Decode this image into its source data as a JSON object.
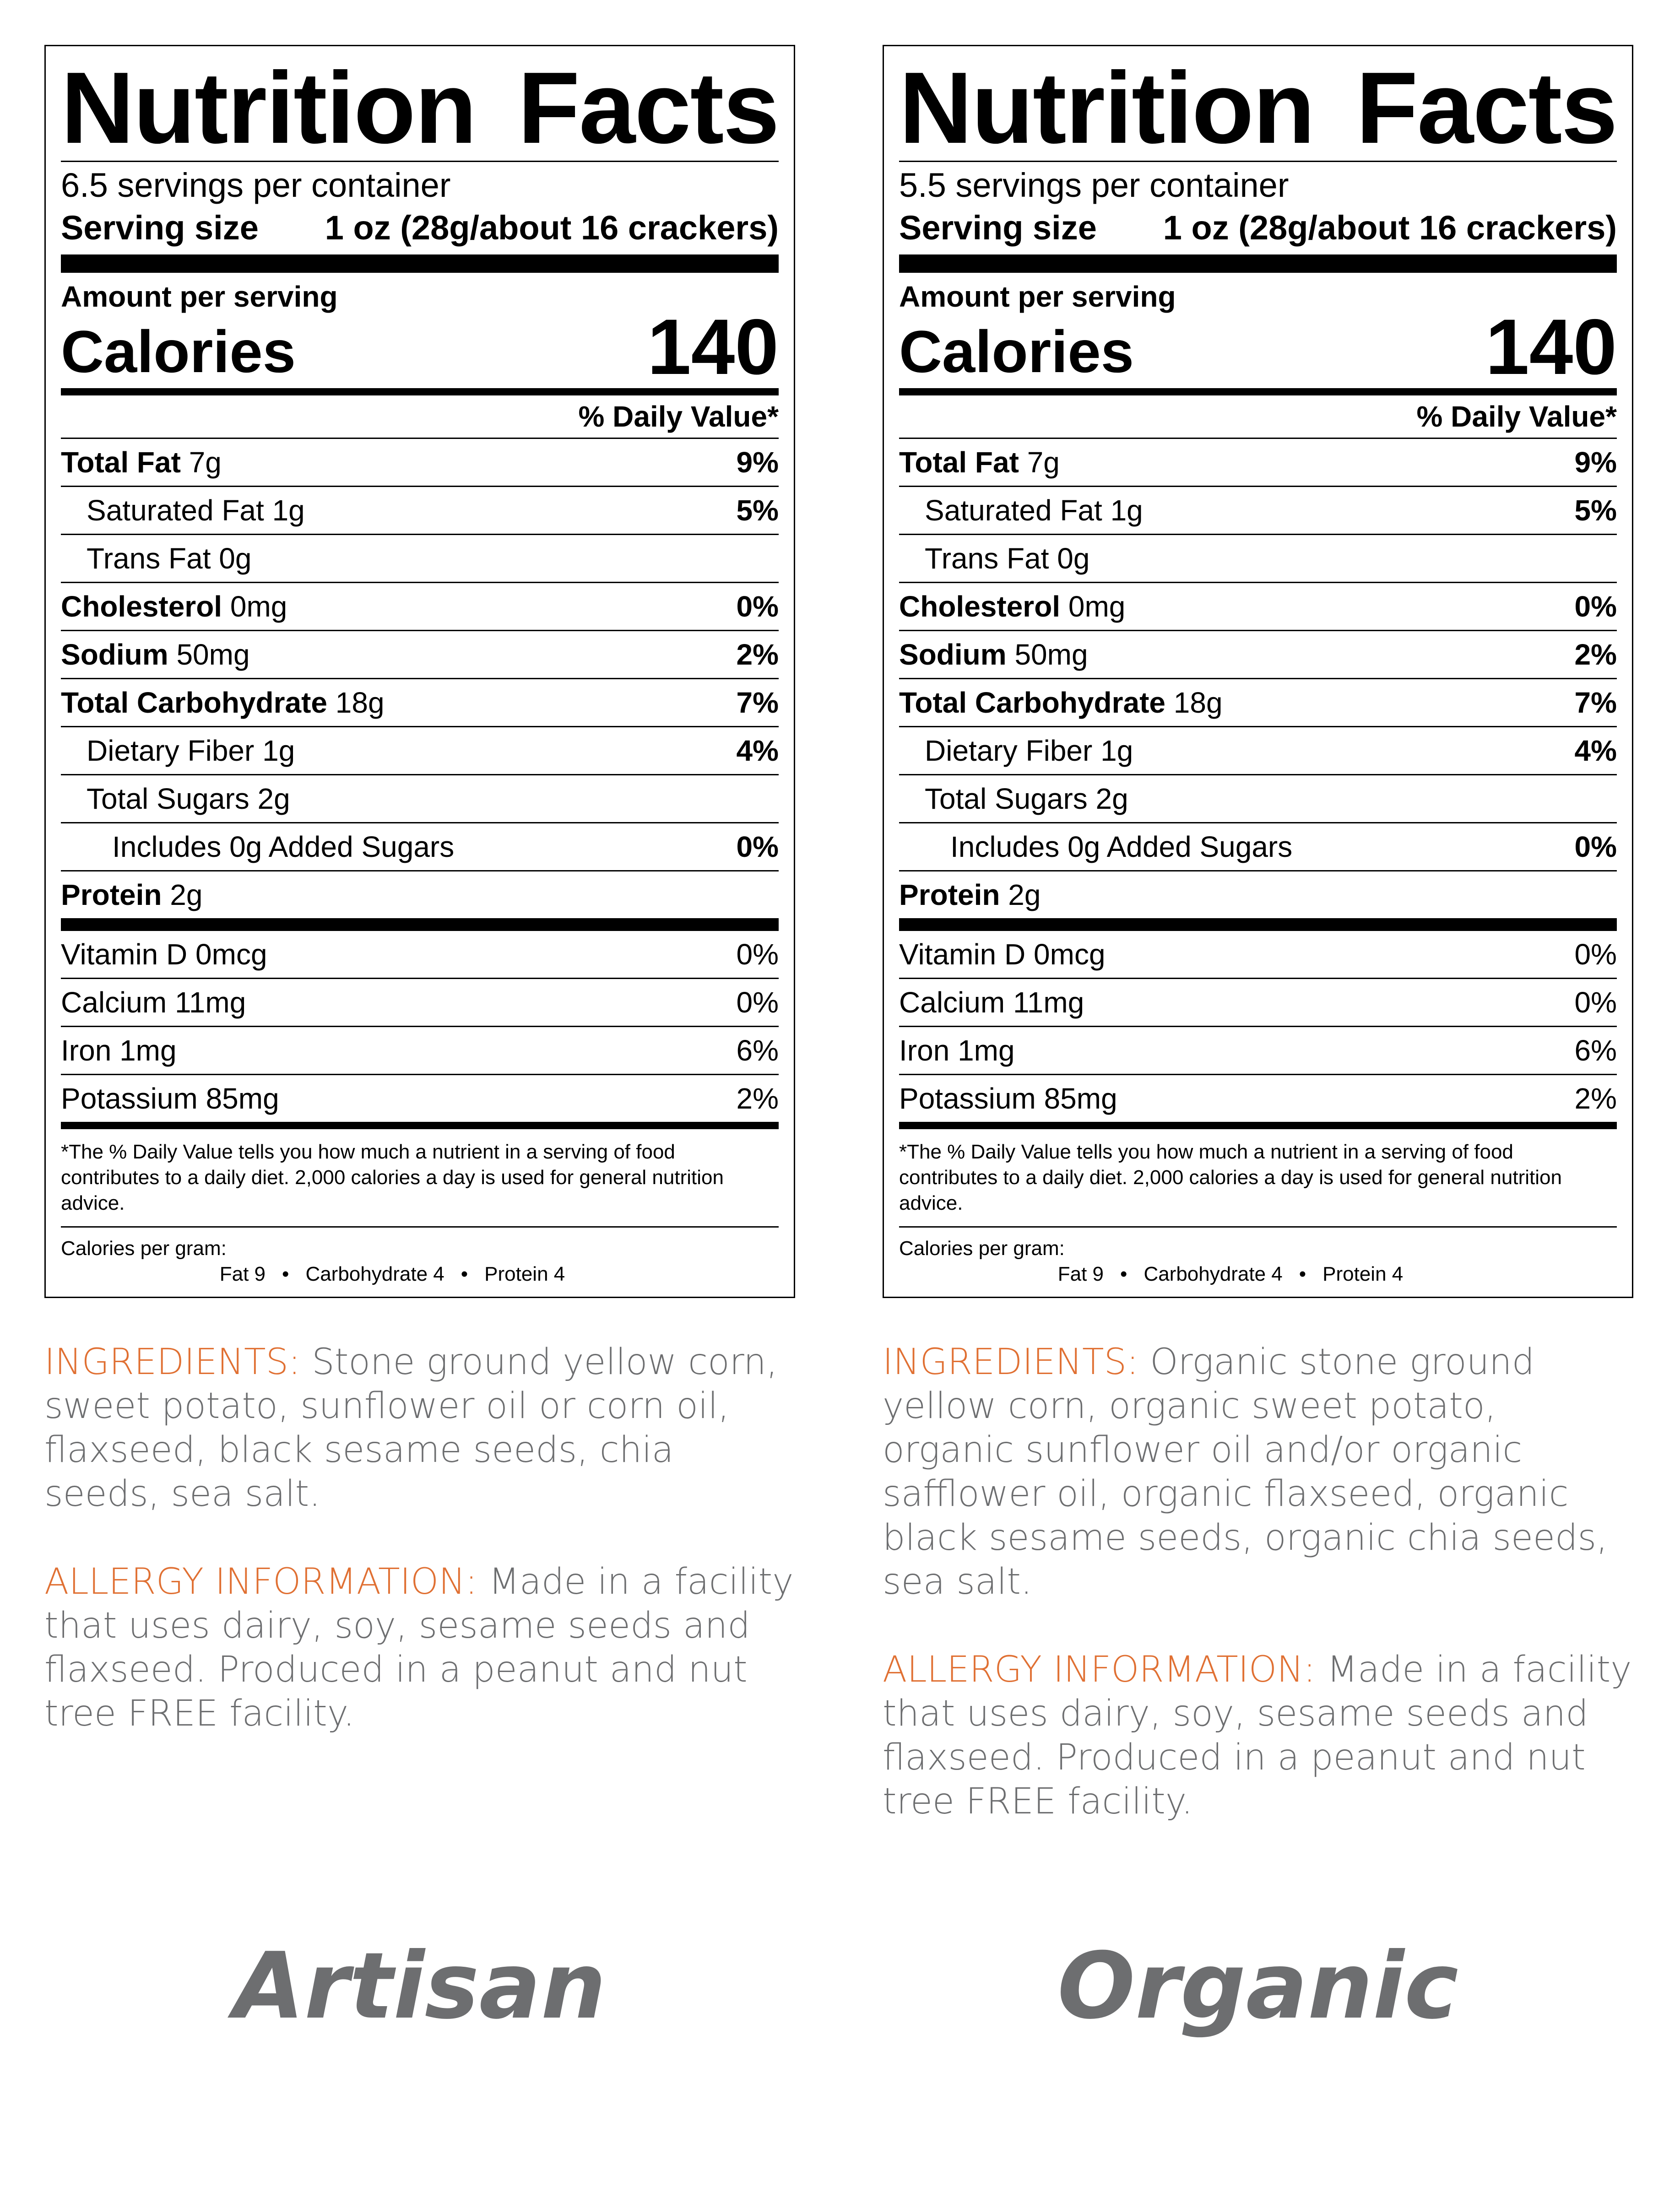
{
  "labels": [
    {
      "title": "Nutrition Facts",
      "servings_per_container": "6.5 servings per container",
      "serving_size_label": "Serving size",
      "serving_size_value": "1 oz (28g/about 16 crackers)",
      "amount_per_serving": "Amount per serving",
      "calories_label": "Calories",
      "calories_value": "140",
      "daily_value_header": "% Daily Value*",
      "nutrients": [
        {
          "name": "Total Fat",
          "amount": "7g",
          "dv": "9%"
        },
        {
          "name": "Saturated Fat",
          "amount": "1g",
          "dv": "5%"
        },
        {
          "name": "Trans Fat",
          "amount": "0g",
          "dv": ""
        },
        {
          "name": "Cholesterol",
          "amount": "0mg",
          "dv": "0%"
        },
        {
          "name": "Sodium",
          "amount": "50mg",
          "dv": "2%"
        },
        {
          "name": "Total Carbohydrate",
          "amount": "18g",
          "dv": "7%"
        },
        {
          "name": "Dietary Fiber",
          "amount": "1g",
          "dv": "4%"
        },
        {
          "name": "Total Sugars",
          "amount": "2g",
          "dv": ""
        },
        {
          "name": "Includes 0g Added Sugars",
          "amount": "",
          "dv": "0%"
        },
        {
          "name": "Protein",
          "amount": "2g",
          "dv": ""
        }
      ],
      "vitamins": [
        {
          "name": "Vitamin D 0mcg",
          "dv": "0%"
        },
        {
          "name": "Calcium 11mg",
          "dv": "0%"
        },
        {
          "name": "Iron 1mg",
          "dv": "6%"
        },
        {
          "name": "Potassium 85mg",
          "dv": "2%"
        }
      ],
      "footnote": "*The % Daily Value tells you how much a nutrient in a serving of food contributes to a daily diet. 2,000 calories a day is used for general nutrition advice.",
      "calories_per_gram_label": "Calories per gram:",
      "cpg_fat": "Fat 9",
      "cpg_carb": "Carbohydrate 4",
      "cpg_protein": "Protein 4"
    },
    {
      "title": "Nutrition Facts",
      "servings_per_container": "5.5 servings per container",
      "serving_size_label": "Serving size",
      "serving_size_value": "1 oz (28g/about 16 crackers)",
      "amount_per_serving": "Amount per serving",
      "calories_label": "Calories",
      "calories_value": "140",
      "daily_value_header": "% Daily Value*",
      "nutrients": [
        {
          "name": "Total Fat",
          "amount": "7g",
          "dv": "9%"
        },
        {
          "name": "Saturated Fat",
          "amount": "1g",
          "dv": "5%"
        },
        {
          "name": "Trans Fat",
          "amount": "0g",
          "dv": ""
        },
        {
          "name": "Cholesterol",
          "amount": "0mg",
          "dv": "0%"
        },
        {
          "name": "Sodium",
          "amount": "50mg",
          "dv": "2%"
        },
        {
          "name": "Total Carbohydrate",
          "amount": "18g",
          "dv": "7%"
        },
        {
          "name": "Dietary Fiber",
          "amount": "1g",
          "dv": "4%"
        },
        {
          "name": "Total Sugars",
          "amount": "2g",
          "dv": ""
        },
        {
          "name": "Includes 0g Added Sugars",
          "amount": "",
          "dv": "0%"
        },
        {
          "name": "Protein",
          "amount": "2g",
          "dv": ""
        }
      ],
      "vitamins": [
        {
          "name": "Vitamin D 0mcg",
          "dv": "0%"
        },
        {
          "name": "Calcium 11mg",
          "dv": "0%"
        },
        {
          "name": "Iron 1mg",
          "dv": "6%"
        },
        {
          "name": "Potassium 85mg",
          "dv": "2%"
        }
      ],
      "footnote": "*The % Daily Value tells you how much a nutrient in a serving of food contributes to a daily diet. 2,000 calories a day is used for general nutrition advice.",
      "calories_per_gram_label": "Calories per gram:",
      "cpg_fat": "Fat 9",
      "cpg_carb": "Carbohydrate 4",
      "cpg_protein": "Protein 4"
    }
  ],
  "info": [
    {
      "ingredients_heading": "INGREDIENTS:",
      "ingredients_text": "Stone ground yellow corn, sweet potato, sunflower oil or corn oil, flaxseed, black sesame seeds, chia seeds, sea salt.",
      "allergy_heading": "ALLERGY INFORMATION:",
      "allergy_text": "Made in a facility that uses dairy, soy, sesame seeds and flaxseed. Produced in a peanut and nut tree FREE facility.",
      "product_name": "Artisan"
    },
    {
      "ingredients_heading": "INGREDIENTS:",
      "ingredients_text": "Organic stone ground yellow corn, organic sweet potato, organic sunflower oil and/or organic safflower oil, organic flaxseed, organic black sesame seeds, organic chia seeds, sea salt.",
      "allergy_heading": "ALLERGY INFORMATION:",
      "allergy_text": "Made in a facility that uses dairy, soy, sesame seeds and flaxseed. Produced in a peanut and nut tree FREE facility.",
      "product_name": "Organic"
    }
  ],
  "colors": {
    "heading_orange": "#e07033",
    "body_gray": "#6d6e70"
  }
}
